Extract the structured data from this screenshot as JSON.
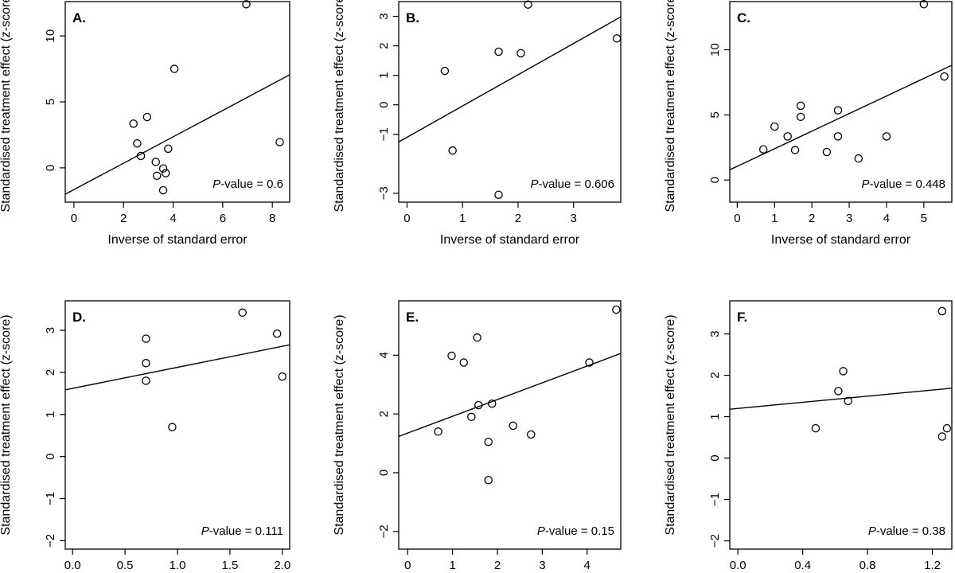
{
  "chart_data": [
    {
      "type": "scatter",
      "panel_label": "A.",
      "xlabel": "Inverse of standard error",
      "ylabel": "Standardised treatment effect (z-score)",
      "xlim": [
        -0.35,
        8.7
      ],
      "ylim": [
        -2.6,
        12.6
      ],
      "xticks": [
        0,
        2,
        4,
        6,
        8
      ],
      "xtick_labels": [
        "0",
        "2",
        "4",
        "6",
        "8"
      ],
      "yticks": [
        0,
        5,
        10
      ],
      "ytick_labels": [
        "0",
        "5",
        "10"
      ],
      "points": [
        [
          2.4,
          3.35
        ],
        [
          2.55,
          1.85
        ],
        [
          2.7,
          0.9
        ],
        [
          2.95,
          3.85
        ],
        [
          3.3,
          0.45
        ],
        [
          3.35,
          -0.6
        ],
        [
          3.6,
          -0.05
        ],
        [
          3.6,
          -1.7
        ],
        [
          3.7,
          -0.4
        ],
        [
          3.8,
          1.45
        ],
        [
          4.05,
          7.5
        ],
        [
          6.95,
          12.4
        ],
        [
          8.3,
          1.95
        ]
      ],
      "regression": {
        "intercept": -1.65,
        "slope": 1.0
      },
      "annotation": {
        "p_label": "P",
        "p_suffix": "-value = 0.6"
      }
    },
    {
      "type": "scatter",
      "panel_label": "B.",
      "xlabel": "Inverse of standard error",
      "ylabel": "Standardised treatment effect (z-score)",
      "xlim": [
        -0.15,
        3.85
      ],
      "ylim": [
        -3.3,
        3.5
      ],
      "xticks": [
        0,
        1,
        2,
        3
      ],
      "xtick_labels": [
        "0",
        "1",
        "2",
        "3"
      ],
      "yticks": [
        -3,
        -1,
        0,
        1,
        2,
        3
      ],
      "ytick_labels": [
        "−3",
        "−1",
        "0",
        "1",
        "2",
        "3"
      ],
      "points": [
        [
          0.68,
          1.15
        ],
        [
          0.82,
          -1.55
        ],
        [
          1.65,
          1.8
        ],
        [
          1.65,
          -3.05
        ],
        [
          2.05,
          1.75
        ],
        [
          2.18,
          3.4
        ],
        [
          3.78,
          2.25
        ]
      ],
      "regression": {
        "intercept": -1.1,
        "slope": 1.06
      },
      "annotation": {
        "p_label": "P",
        "p_suffix": "-value = 0.606"
      }
    },
    {
      "type": "scatter",
      "panel_label": "C.",
      "xlabel": "Inverse of standard error",
      "ylabel": "Standardised treatment effect (z-score)",
      "xlim": [
        -0.2,
        5.75
      ],
      "ylim": [
        -1.7,
        13.7
      ],
      "xticks": [
        0,
        1,
        2,
        3,
        4,
        5
      ],
      "xtick_labels": [
        "0",
        "1",
        "2",
        "3",
        "4",
        "5"
      ],
      "yticks": [
        0,
        5,
        10
      ],
      "ytick_labels": [
        "0",
        "5",
        "10"
      ],
      "points": [
        [
          0.7,
          2.35
        ],
        [
          1.0,
          4.1
        ],
        [
          1.35,
          3.35
        ],
        [
          1.55,
          2.3
        ],
        [
          1.7,
          5.7
        ],
        [
          1.7,
          4.85
        ],
        [
          2.4,
          2.15
        ],
        [
          2.7,
          5.35
        ],
        [
          2.7,
          3.35
        ],
        [
          3.25,
          1.65
        ],
        [
          4.0,
          3.35
        ],
        [
          5.0,
          13.5
        ],
        [
          5.55,
          7.95
        ]
      ],
      "regression": {
        "intercept": 1.05,
        "slope": 1.35
      },
      "annotation": {
        "p_label": "P",
        "p_suffix": "-value = 0.448"
      }
    },
    {
      "type": "scatter",
      "panel_label": "D.",
      "xlabel": "Inverse of standard error",
      "ylabel": "Standardised treatment effect (z-score)",
      "xlim": [
        -0.07,
        2.07
      ],
      "ylim": [
        -2.2,
        3.7
      ],
      "xticks": [
        0,
        0.5,
        1,
        1.5,
        2
      ],
      "xtick_labels": [
        "0.0",
        "0.5",
        "1.0",
        "1.5",
        "2.0"
      ],
      "yticks": [
        -2,
        -1,
        0,
        1,
        2,
        3
      ],
      "ytick_labels": [
        "−2",
        "−1",
        "0",
        "1",
        "2",
        "3"
      ],
      "points": [
        [
          0.7,
          2.8
        ],
        [
          0.7,
          2.22
        ],
        [
          0.7,
          1.8
        ],
        [
          0.95,
          0.7
        ],
        [
          1.62,
          3.42
        ],
        [
          1.95,
          2.92
        ],
        [
          2.0,
          1.9
        ]
      ],
      "regression": {
        "intercept": 1.62,
        "slope": 0.5
      },
      "annotation": {
        "p_label": "P",
        "p_suffix": "-value = 0.111"
      }
    },
    {
      "type": "scatter",
      "panel_label": "E.",
      "xlabel": "Inverse of standard error",
      "ylabel": "Standardised treatment effect (z-score)",
      "xlim": [
        -0.2,
        4.75
      ],
      "ylim": [
        -2.6,
        5.85
      ],
      "xticks": [
        0,
        1,
        2,
        3,
        4
      ],
      "xtick_labels": [
        "0",
        "1",
        "2",
        "3",
        "4"
      ],
      "yticks": [
        -2,
        0,
        2,
        4
      ],
      "ytick_labels": [
        "−2",
        "0",
        "2",
        "4"
      ],
      "points": [
        [
          0.68,
          1.4
        ],
        [
          0.98,
          3.98
        ],
        [
          1.25,
          3.75
        ],
        [
          1.42,
          1.9
        ],
        [
          1.55,
          4.6
        ],
        [
          1.58,
          2.3
        ],
        [
          1.8,
          1.05
        ],
        [
          1.8,
          -0.25
        ],
        [
          1.88,
          2.35
        ],
        [
          2.35,
          1.6
        ],
        [
          2.75,
          1.3
        ],
        [
          4.05,
          3.75
        ],
        [
          4.65,
          5.55
        ]
      ],
      "regression": {
        "intercept": 1.35,
        "slope": 0.57
      },
      "annotation": {
        "p_label": "P",
        "p_suffix": "-value = 0.15"
      }
    },
    {
      "type": "scatter",
      "panel_label": "F.",
      "xlabel": "Inverse of standard error",
      "ylabel": "Standardised treatment effect (z-score)",
      "xlim": [
        -0.05,
        1.32
      ],
      "ylim": [
        -2.2,
        3.8
      ],
      "xticks": [
        0,
        0.4,
        0.8,
        1.2
      ],
      "xtick_labels": [
        "0.0",
        "0.4",
        "0.8",
        "1.2"
      ],
      "yticks": [
        -2,
        -1,
        0,
        1,
        2,
        3
      ],
      "ytick_labels": [
        "−2",
        "−1",
        "0",
        "1",
        "2",
        "3"
      ],
      "points": [
        [
          0.48,
          0.72
        ],
        [
          0.62,
          1.62
        ],
        [
          0.65,
          2.1
        ],
        [
          0.68,
          1.38
        ],
        [
          1.26,
          3.55
        ],
        [
          1.26,
          0.52
        ],
        [
          1.29,
          0.72
        ]
      ],
      "regression": {
        "intercept": 1.2,
        "slope": 0.37
      },
      "annotation": {
        "p_label": "P",
        "p_suffix": "-value = 0.38"
      }
    }
  ]
}
